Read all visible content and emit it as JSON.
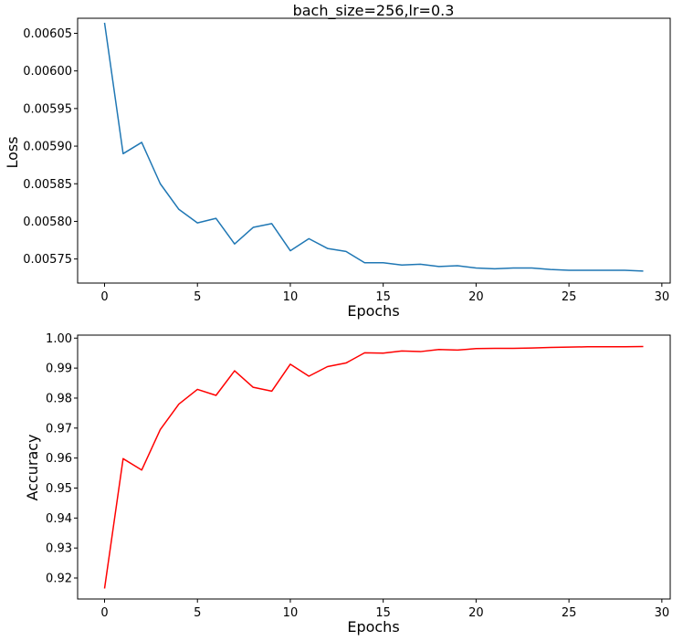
{
  "chart_data": [
    {
      "type": "line",
      "title": "bach_size=256,lr=0.3",
      "xlabel": "Epochs",
      "ylabel": "Loss",
      "xlim": [
        -1.45,
        30.45
      ],
      "ylim": [
        0.005718,
        0.00607
      ],
      "x_ticks": [
        0,
        5,
        10,
        15,
        20,
        25,
        30
      ],
      "x_tick_labels": [
        "0",
        "5",
        "10",
        "15",
        "20",
        "25",
        "30"
      ],
      "y_ticks": [
        0.00575,
        0.0058,
        0.00585,
        0.0059,
        0.00595,
        0.006,
        0.00605
      ],
      "y_tick_labels": [
        "0.00575",
        "0.00580",
        "0.00585",
        "0.00590",
        "0.00595",
        "0.00600",
        "0.00605"
      ],
      "grid": false,
      "color": "#1f77b4",
      "x": [
        0,
        1,
        2,
        3,
        4,
        5,
        6,
        7,
        8,
        9,
        10,
        11,
        12,
        13,
        14,
        15,
        16,
        17,
        18,
        19,
        20,
        21,
        22,
        23,
        24,
        25,
        26,
        27,
        28,
        29
      ],
      "y": [
        0.006064,
        0.00589,
        0.005905,
        0.00585,
        0.005816,
        0.005798,
        0.005804,
        0.00577,
        0.005792,
        0.005797,
        0.005761,
        0.005777,
        0.005764,
        0.00576,
        0.005745,
        0.005745,
        0.005742,
        0.005743,
        0.00574,
        0.005741,
        0.005738,
        0.005737,
        0.005738,
        0.005738,
        0.005736,
        0.005735,
        0.005735,
        0.005735,
        0.005735,
        0.005734
      ]
    },
    {
      "type": "line",
      "title": "",
      "xlabel": "Epochs",
      "ylabel": "Accuracy",
      "xlim": [
        -1.45,
        30.45
      ],
      "ylim": [
        0.913,
        1.001
      ],
      "x_ticks": [
        0,
        5,
        10,
        15,
        20,
        25,
        30
      ],
      "x_tick_labels": [
        "0",
        "5",
        "10",
        "15",
        "20",
        "25",
        "30"
      ],
      "y_ticks": [
        0.92,
        0.93,
        0.94,
        0.95,
        0.96,
        0.97,
        0.98,
        0.99,
        1.0
      ],
      "y_tick_labels": [
        "0.92",
        "0.93",
        "0.94",
        "0.95",
        "0.96",
        "0.97",
        "0.98",
        "0.99",
        "1.00"
      ],
      "grid": false,
      "color": "#ff0000",
      "x": [
        0,
        1,
        2,
        3,
        4,
        5,
        6,
        7,
        8,
        9,
        10,
        11,
        12,
        13,
        14,
        15,
        16,
        17,
        18,
        19,
        20,
        21,
        22,
        23,
        24,
        25,
        26,
        27,
        28,
        29
      ],
      "y": [
        0.9165,
        0.9598,
        0.956,
        0.9695,
        0.978,
        0.9829,
        0.9809,
        0.9891,
        0.9836,
        0.9823,
        0.9913,
        0.9873,
        0.9905,
        0.9917,
        0.9951,
        0.995,
        0.9957,
        0.9955,
        0.9962,
        0.996,
        0.9965,
        0.9966,
        0.9966,
        0.9967,
        0.9969,
        0.997,
        0.9971,
        0.9971,
        0.9971,
        0.9972
      ]
    }
  ]
}
